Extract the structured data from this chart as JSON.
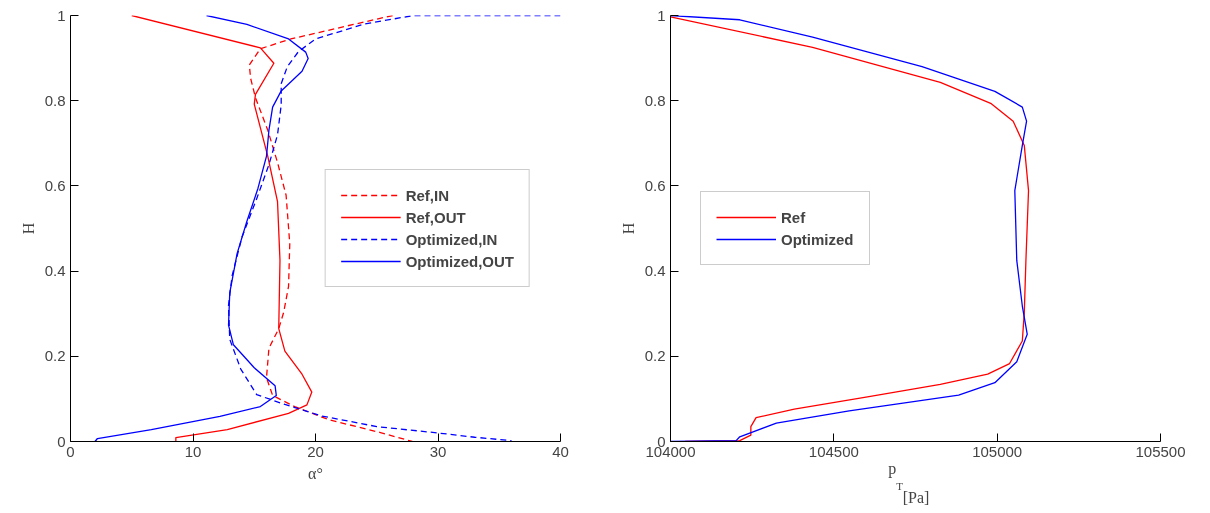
{
  "chart_data": [
    {
      "type": "line",
      "xlabel": "α°",
      "ylabel": "H",
      "xlim": [
        0,
        40
      ],
      "ylim": [
        0,
        1
      ],
      "xticks": [
        0,
        10,
        20,
        30,
        40
      ],
      "yticks": [
        0,
        0.2,
        0.4,
        0.6,
        0.8,
        1
      ],
      "grid": false,
      "legend": "right",
      "series": [
        {
          "name": "Ref,IN",
          "color": "#ff0000",
          "line_style": "dashed",
          "x": [
            26.3,
            23.1,
            18.0,
            15.5,
            14.6,
            14.7,
            15.1,
            16.1,
            16.9,
            17.6,
            17.9,
            17.8,
            17.4,
            17.0,
            16.2,
            16.0,
            16.5,
            18.3,
            21.1,
            25.3,
            27.9
          ],
          "values": [
            1,
            0.979,
            0.945,
            0.922,
            0.884,
            0.853,
            0.807,
            0.731,
            0.655,
            0.578,
            0.464,
            0.364,
            0.303,
            0.265,
            0.219,
            0.15,
            0.108,
            0.082,
            0.051,
            0.021,
            0
          ]
        },
        {
          "name": "Ref,OUT",
          "color": "#ff0000",
          "line_style": "solid",
          "x": [
            5.0,
            15.5,
            16.6,
            15.1,
            15.0,
            16.1,
            16.9,
            17.1,
            17.0,
            17.5,
            18.9,
            19.7,
            19.3,
            17.8,
            12.8,
            8.6,
            8.6
          ],
          "values": [
            1,
            0.924,
            0.888,
            0.815,
            0.792,
            0.67,
            0.563,
            0.425,
            0.265,
            0.212,
            0.158,
            0.116,
            0.086,
            0.066,
            0.028,
            0.009,
            0
          ]
        },
        {
          "name": "Optimized,IN",
          "color": "#0000ff",
          "line_style": "dashed",
          "x": [
            40,
            28,
            24,
            20,
            18.6,
            17.7,
            17.2,
            17.2,
            16.9,
            16.2,
            15.2,
            14.0,
            13.2,
            12.9,
            13.0,
            13.9,
            15.2,
            17.5,
            20.5,
            25,
            30,
            33,
            36
          ],
          "values": [
            1,
            1,
            0.98,
            0.945,
            0.915,
            0.88,
            0.84,
            0.79,
            0.72,
            0.65,
            0.57,
            0.48,
            0.39,
            0.32,
            0.24,
            0.17,
            0.11,
            0.087,
            0.06,
            0.035,
            0.02,
            0.01,
            0.002
          ]
        },
        {
          "name": "Optimized,OUT",
          "color": "#0000ff",
          "line_style": "solid",
          "x": [
            11.1,
            14.4,
            17.8,
            19.2,
            19.4,
            18.9,
            17.2,
            16.5,
            16.2,
            16.0,
            15.3,
            14.4,
            13.6,
            13.0,
            12.9,
            13.3,
            15.0,
            16.7,
            16.8,
            15.5,
            12.2,
            6.6,
            2.2,
            2.0
          ],
          "values": [
            1,
            0.979,
            0.945,
            0.914,
            0.899,
            0.869,
            0.823,
            0.785,
            0.731,
            0.67,
            0.594,
            0.517,
            0.441,
            0.349,
            0.273,
            0.227,
            0.173,
            0.131,
            0.108,
            0.082,
            0.059,
            0.028,
            0.007,
            0
          ]
        }
      ]
    },
    {
      "type": "line",
      "xlabel": "p$_{T}$ [Pa]",
      "ylabel": "H",
      "xlim": [
        104000,
        105500
      ],
      "ylim": [
        0,
        1
      ],
      "xticks": [
        104000,
        104500,
        105000,
        105500
      ],
      "yticks": [
        0,
        0.2,
        0.4,
        0.6,
        0.8,
        1
      ],
      "grid": false,
      "legend": "left",
      "series": [
        {
          "name": "Ref",
          "color": "#ff0000",
          "line_style": "solid",
          "x": [
            104000,
            104435,
            104826,
            104982,
            105049,
            105083,
            105096,
            105088,
            105083,
            105077,
            105038,
            104971,
            104826,
            104603,
            104379,
            104262,
            104246,
            104246,
            104212,
            104045
          ],
          "values": [
            0.997,
            0.925,
            0.843,
            0.793,
            0.752,
            0.695,
            0.589,
            0.425,
            0.302,
            0.236,
            0.183,
            0.158,
            0.134,
            0.105,
            0.076,
            0.056,
            0.035,
            0.015,
            0.002,
            0
          ]
        },
        {
          "name": "Optimized",
          "color": "#0000ff",
          "line_style": "solid",
          "x": [
            104000,
            104212,
            104435,
            104770,
            104993,
            105077,
            105090,
            105077,
            105054,
            105060,
            105077,
            105092,
            105060,
            104993,
            104882,
            104547,
            104324,
            104212,
            104201,
            104000
          ],
          "values": [
            1,
            0.99,
            0.949,
            0.88,
            0.822,
            0.785,
            0.752,
            0.695,
            0.589,
            0.425,
            0.318,
            0.252,
            0.187,
            0.138,
            0.109,
            0.072,
            0.043,
            0.011,
            0.002,
            0
          ]
        }
      ]
    }
  ]
}
